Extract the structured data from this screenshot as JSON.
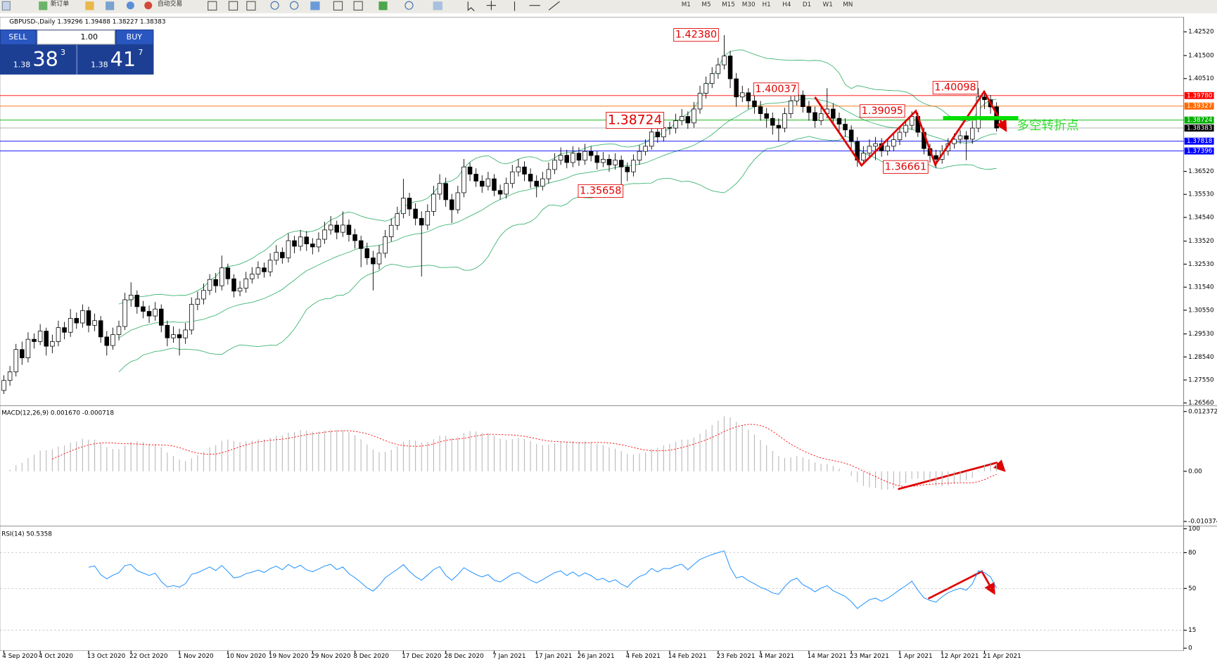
{
  "toolbar": {
    "new_order": "新订单",
    "auto_trading": "自动交易",
    "timeframes": [
      "M1",
      "M5",
      "M15",
      "M30",
      "H1",
      "H4",
      "D1",
      "W1",
      "MN"
    ]
  },
  "trade_panel": {
    "sell": "SELL",
    "lot": "1.00",
    "buy": "BUY",
    "sell_price": [
      "1.38",
      "38",
      "3"
    ],
    "buy_price": [
      "1.38",
      "41",
      "7"
    ]
  },
  "chart_data": {
    "type": "candlestick",
    "title": "GBPUSD-,Daily 1.39296 1.39488 1.38227 1.38383",
    "categories": [
      "4 Sep 2020",
      null,
      null,
      null,
      null,
      null,
      "4 Oct 2020",
      null,
      null,
      null,
      null,
      null,
      null,
      null,
      "13 Oct 2020",
      null,
      null,
      null,
      null,
      null,
      null,
      "22 Oct 2020",
      null,
      null,
      null,
      null,
      null,
      null,
      null,
      "1 Nov 2020",
      null,
      null,
      null,
      null,
      null,
      null,
      null,
      "10 Nov 2020",
      null,
      null,
      null,
      null,
      null,
      null,
      "19 Nov 2020",
      null,
      null,
      null,
      null,
      null,
      null,
      "29 Nov 2020",
      null,
      null,
      null,
      null,
      null,
      null,
      "8 Dec 2020",
      null,
      null,
      null,
      null,
      null,
      null,
      null,
      "17 Dec 2020",
      null,
      null,
      null,
      null,
      null,
      null,
      "28 Dec 2020",
      null,
      null,
      null,
      null,
      null,
      null,
      null,
      "7 Jan 2021",
      null,
      null,
      null,
      null,
      null,
      null,
      "17 Jan 2021",
      null,
      null,
      null,
      null,
      null,
      null,
      "26 Jan 2021",
      null,
      null,
      null,
      null,
      null,
      null,
      null,
      "4 Feb 2021",
      null,
      null,
      null,
      null,
      null,
      null,
      "14 Feb 2021",
      null,
      null,
      null,
      null,
      null,
      null,
      null,
      "23 Feb 2021",
      null,
      null,
      null,
      null,
      null,
      null,
      "4 Mar 2021",
      null,
      null,
      null,
      null,
      null,
      null,
      null,
      "14 Mar 2021",
      null,
      null,
      null,
      null,
      null,
      null,
      "23 Mar 2021",
      null,
      null,
      null,
      null,
      null,
      null,
      null,
      "1 Apr 2021",
      null,
      null,
      null,
      null,
      null,
      null,
      "12 Apr 2021",
      null,
      null,
      null,
      null,
      null,
      null,
      "21 Apr 2021",
      null,
      null
    ],
    "ohlc": [
      [
        1.271,
        1.2775,
        1.2695,
        1.2753
      ],
      [
        1.2753,
        1.2815,
        1.273,
        1.279
      ],
      [
        1.279,
        1.291,
        1.277,
        1.2886
      ],
      [
        1.2886,
        1.292,
        1.282,
        1.285
      ],
      [
        1.285,
        1.296,
        1.283,
        1.293
      ],
      [
        1.293,
        1.2955,
        1.289,
        1.292
      ],
      [
        1.292,
        1.2995,
        1.2905,
        1.2965
      ],
      [
        1.2965,
        1.298,
        1.286,
        1.29
      ],
      [
        1.29,
        1.295,
        1.287,
        1.292
      ],
      [
        1.292,
        1.301,
        1.29,
        1.298
      ],
      [
        1.298,
        1.3005,
        1.293,
        1.296
      ],
      [
        1.296,
        1.306,
        1.294,
        1.302
      ],
      [
        1.302,
        1.3045,
        1.2975,
        1.3
      ],
      [
        1.3,
        1.308,
        1.298,
        1.3053
      ],
      [
        1.3053,
        1.307,
        1.296,
        1.299
      ],
      [
        1.299,
        1.304,
        1.2965,
        1.301
      ],
      [
        1.301,
        1.303,
        1.2915,
        1.294
      ],
      [
        1.294,
        1.2965,
        1.286,
        1.2903
      ],
      [
        1.2903,
        1.298,
        1.2885,
        1.295
      ],
      [
        1.295,
        1.301,
        1.2925,
        1.2985
      ],
      [
        1.2985,
        1.313,
        1.297,
        1.31
      ],
      [
        1.31,
        1.3175,
        1.307,
        1.312
      ],
      [
        1.312,
        1.314,
        1.304,
        1.307
      ],
      [
        1.307,
        1.3095,
        1.302,
        1.305
      ],
      [
        1.305,
        1.3075,
        1.3,
        1.303
      ],
      [
        1.303,
        1.309,
        1.301,
        1.306
      ],
      [
        1.306,
        1.308,
        1.296,
        1.299
      ],
      [
        1.299,
        1.301,
        1.29,
        1.2936
      ],
      [
        1.2936,
        1.2985,
        1.2915,
        1.295
      ],
      [
        1.295,
        1.2975,
        1.286,
        1.2936
      ],
      [
        1.2936,
        1.3,
        1.291,
        1.297
      ],
      [
        1.297,
        1.311,
        1.295,
        1.308
      ],
      [
        1.308,
        1.3135,
        1.3055,
        1.3103
      ],
      [
        1.3103,
        1.317,
        1.308,
        1.314
      ],
      [
        1.314,
        1.321,
        1.312,
        1.3187
      ],
      [
        1.3187,
        1.3215,
        1.313,
        1.316
      ],
      [
        1.316,
        1.329,
        1.314,
        1.3237
      ],
      [
        1.3237,
        1.3255,
        1.3165,
        1.319
      ],
      [
        1.319,
        1.321,
        1.311,
        1.3137
      ],
      [
        1.3137,
        1.318,
        1.3115,
        1.315
      ],
      [
        1.315,
        1.322,
        1.313,
        1.319
      ],
      [
        1.319,
        1.324,
        1.317,
        1.321
      ],
      [
        1.321,
        1.3265,
        1.319,
        1.3237
      ],
      [
        1.3237,
        1.326,
        1.3195,
        1.322
      ],
      [
        1.322,
        1.33,
        1.32,
        1.327
      ],
      [
        1.327,
        1.3335,
        1.325,
        1.3304
      ],
      [
        1.3304,
        1.3325,
        1.3255,
        1.328
      ],
      [
        1.328,
        1.3385,
        1.326,
        1.3354
      ],
      [
        1.3354,
        1.3375,
        1.33,
        1.333
      ],
      [
        1.333,
        1.34,
        1.331,
        1.337
      ],
      [
        1.337,
        1.3395,
        1.331,
        1.334
      ],
      [
        1.334,
        1.3365,
        1.3295,
        1.3327
      ],
      [
        1.3327,
        1.339,
        1.3305,
        1.336
      ],
      [
        1.336,
        1.3435,
        1.334,
        1.34
      ],
      [
        1.34,
        1.346,
        1.338,
        1.3421
      ],
      [
        1.3421,
        1.344,
        1.336,
        1.339
      ],
      [
        1.339,
        1.348,
        1.337,
        1.3421
      ],
      [
        1.3421,
        1.3445,
        1.335,
        1.338
      ],
      [
        1.338,
        1.3405,
        1.332,
        1.3354
      ],
      [
        1.3354,
        1.3375,
        1.324,
        1.332
      ],
      [
        1.332,
        1.3345,
        1.325,
        1.328
      ],
      [
        1.328,
        1.331,
        1.314,
        1.3254
      ],
      [
        1.3254,
        1.3335,
        1.323,
        1.33
      ],
      [
        1.33,
        1.34,
        1.328,
        1.3371
      ],
      [
        1.3371,
        1.345,
        1.335,
        1.342
      ],
      [
        1.342,
        1.35,
        1.34,
        1.347
      ],
      [
        1.347,
        1.362,
        1.345,
        1.3537
      ],
      [
        1.3537,
        1.356,
        1.346,
        1.349
      ],
      [
        1.349,
        1.3515,
        1.342,
        1.345
      ],
      [
        1.345,
        1.348,
        1.32,
        1.3421
      ],
      [
        1.3421,
        1.351,
        1.34,
        1.348
      ],
      [
        1.348,
        1.359,
        1.346,
        1.3554
      ],
      [
        1.3554,
        1.364,
        1.353,
        1.36
      ],
      [
        1.36,
        1.3625,
        1.35,
        1.353
      ],
      [
        1.353,
        1.3555,
        1.343,
        1.3487
      ],
      [
        1.3487,
        1.359,
        1.347,
        1.356
      ],
      [
        1.356,
        1.3705,
        1.354,
        1.3671
      ],
      [
        1.3671,
        1.369,
        1.361,
        1.364
      ],
      [
        1.364,
        1.3665,
        1.3585,
        1.361
      ],
      [
        1.361,
        1.3635,
        1.356,
        1.3588
      ],
      [
        1.3588,
        1.365,
        1.357,
        1.362
      ],
      [
        1.362,
        1.364,
        1.3545,
        1.357
      ],
      [
        1.357,
        1.3595,
        1.353,
        1.3554
      ],
      [
        1.3554,
        1.3625,
        1.3535,
        1.36
      ],
      [
        1.36,
        1.368,
        1.358,
        1.365
      ],
      [
        1.365,
        1.3705,
        1.363,
        1.3671
      ],
      [
        1.3671,
        1.3695,
        1.361,
        1.364
      ],
      [
        1.364,
        1.3665,
        1.358,
        1.361
      ],
      [
        1.361,
        1.3635,
        1.354,
        1.3588
      ],
      [
        1.3588,
        1.365,
        1.357,
        1.362
      ],
      [
        1.362,
        1.369,
        1.36,
        1.366
      ],
      [
        1.366,
        1.373,
        1.364,
        1.37
      ],
      [
        1.37,
        1.3755,
        1.368,
        1.3721
      ],
      [
        1.3721,
        1.3745,
        1.3665,
        1.369
      ],
      [
        1.369,
        1.376,
        1.367,
        1.373
      ],
      [
        1.373,
        1.3755,
        1.3675,
        1.37
      ],
      [
        1.37,
        1.377,
        1.368,
        1.3738
      ],
      [
        1.3738,
        1.376,
        1.3695,
        1.372
      ],
      [
        1.372,
        1.374,
        1.366,
        1.369
      ],
      [
        1.369,
        1.3735,
        1.367,
        1.3704
      ],
      [
        1.3704,
        1.3725,
        1.365,
        1.368
      ],
      [
        1.368,
        1.373,
        1.366,
        1.37
      ],
      [
        1.37,
        1.372,
        1.35658,
        1.3671
      ],
      [
        1.3671,
        1.369,
        1.361,
        1.365
      ],
      [
        1.365,
        1.3725,
        1.363,
        1.37
      ],
      [
        1.37,
        1.3765,
        1.368,
        1.3738
      ],
      [
        1.3738,
        1.379,
        1.372,
        1.376
      ],
      [
        1.376,
        1.385,
        1.3745,
        1.3821
      ],
      [
        1.3821,
        1.384,
        1.3775,
        1.38
      ],
      [
        1.38,
        1.387,
        1.378,
        1.384
      ],
      [
        1.384,
        1.3865,
        1.381,
        1.3838
      ],
      [
        1.3838,
        1.39,
        1.3815,
        1.387
      ],
      [
        1.387,
        1.392,
        1.385,
        1.3888
      ],
      [
        1.3888,
        1.391,
        1.3835,
        1.386
      ],
      [
        1.386,
        1.395,
        1.384,
        1.392
      ],
      [
        1.392,
        1.402,
        1.39,
        1.3988
      ],
      [
        1.3988,
        1.406,
        1.3965,
        1.403
      ],
      [
        1.403,
        1.41,
        1.401,
        1.4072
      ],
      [
        1.4072,
        1.414,
        1.405,
        1.411
      ],
      [
        1.411,
        1.4238,
        1.409,
        1.4148
      ],
      [
        1.4148,
        1.417,
        1.401,
        1.405
      ],
      [
        1.405,
        1.4075,
        1.393,
        1.3972
      ],
      [
        1.3972,
        1.402,
        1.395,
        1.399
      ],
      [
        1.399,
        1.401,
        1.392,
        1.3955
      ],
      [
        1.3955,
        1.3985,
        1.39,
        1.393
      ],
      [
        1.393,
        1.3955,
        1.387,
        1.39
      ],
      [
        1.39,
        1.3925,
        1.384,
        1.388
      ],
      [
        1.388,
        1.3905,
        1.381,
        1.385
      ],
      [
        1.385,
        1.388,
        1.378,
        1.3838
      ],
      [
        1.3838,
        1.3925,
        1.382,
        1.39
      ],
      [
        1.39,
        1.3975,
        1.388,
        1.3955
      ],
      [
        1.3955,
        1.40037,
        1.3935,
        1.398
      ],
      [
        1.398,
        1.4,
        1.3905,
        1.393
      ],
      [
        1.393,
        1.3955,
        1.387,
        1.3905
      ],
      [
        1.3905,
        1.393,
        1.384,
        1.387
      ],
      [
        1.387,
        1.3935,
        1.385,
        1.39
      ],
      [
        1.39,
        1.401,
        1.388,
        1.392
      ],
      [
        1.392,
        1.3945,
        1.385,
        1.388
      ],
      [
        1.388,
        1.3905,
        1.382,
        1.3855
      ],
      [
        1.3855,
        1.388,
        1.38,
        1.383
      ],
      [
        1.383,
        1.385,
        1.375,
        1.378
      ],
      [
        1.378,
        1.38,
        1.3672,
        1.37
      ],
      [
        1.37,
        1.376,
        1.368,
        1.373
      ],
      [
        1.373,
        1.379,
        1.371,
        1.376
      ],
      [
        1.376,
        1.38,
        1.37,
        1.3771
      ],
      [
        1.3771,
        1.3795,
        1.3715,
        1.374
      ],
      [
        1.374,
        1.3785,
        1.372,
        1.376
      ],
      [
        1.376,
        1.3815,
        1.374,
        1.3788
      ],
      [
        1.3788,
        1.3845,
        1.3765,
        1.382
      ],
      [
        1.382,
        1.3875,
        1.38,
        1.385
      ],
      [
        1.385,
        1.39095,
        1.383,
        1.3888
      ],
      [
        1.3888,
        1.3905,
        1.38,
        1.382
      ],
      [
        1.382,
        1.384,
        1.3725,
        1.375
      ],
      [
        1.375,
        1.377,
        1.369,
        1.372
      ],
      [
        1.372,
        1.3745,
        1.36661,
        1.3704
      ],
      [
        1.3704,
        1.3765,
        1.3685,
        1.374
      ],
      [
        1.374,
        1.3795,
        1.372,
        1.3771
      ],
      [
        1.3771,
        1.3815,
        1.375,
        1.379
      ],
      [
        1.379,
        1.383,
        1.377,
        1.3805
      ],
      [
        1.3805,
        1.3825,
        1.37,
        1.379
      ],
      [
        1.379,
        1.387,
        1.377,
        1.3838
      ],
      [
        1.3838,
        1.40098,
        1.382,
        1.3972
      ],
      [
        1.3972,
        1.3995,
        1.392,
        1.396
      ],
      [
        1.396,
        1.398,
        1.39,
        1.3929
      ],
      [
        1.39296,
        1.39488,
        1.38227,
        1.38383
      ]
    ],
    "ylim": [
      1.26493,
      1.43154
    ],
    "yticks": [
      {
        "value": 1.4252,
        "label": "1.42520"
      },
      {
        "value": 1.415,
        "label": "1.41500"
      },
      {
        "value": 1.4051,
        "label": "1.40510"
      },
      {
        "value": 1.3652,
        "label": "1.36520"
      },
      {
        "value": 1.3553,
        "label": "1.35530"
      },
      {
        "value": 1.3454,
        "label": "1.34540"
      },
      {
        "value": 1.3352,
        "label": "1.33520"
      },
      {
        "value": 1.3253,
        "label": "1.32530"
      },
      {
        "value": 1.3154,
        "label": "1.31540"
      },
      {
        "value": 1.3055,
        "label": "1.30550"
      },
      {
        "value": 1.2953,
        "label": "1.29530"
      },
      {
        "value": 1.2854,
        "label": "1.28540"
      },
      {
        "value": 1.2755,
        "label": "1.27550"
      },
      {
        "value": 1.2656,
        "label": "1.26560"
      }
    ],
    "levels": [
      {
        "value": 1.3978,
        "label": "1.39780",
        "color": "#ff0000"
      },
      {
        "value": 1.39327,
        "label": "1.39327",
        "color": "#ff6a00"
      },
      {
        "value": 1.38724,
        "label": "1.38724",
        "color": "#00b000"
      },
      {
        "value": 1.38383,
        "label": "1.38383",
        "color": "#000000"
      },
      {
        "value": 1.37818,
        "label": "1.37818",
        "color": "#0000ff"
      },
      {
        "value": 1.37396,
        "label": "1.37396",
        "color": "#0000ff"
      }
    ],
    "annotations": [
      "1.42380",
      "1.40037",
      "1.38724",
      "1.39095",
      "1.35658",
      "1.36661",
      "1.40098"
    ],
    "note": "多空转折点",
    "band_color": "#3cb371",
    "macd": {
      "title": "MACD(12,26,9) 0.001670 -0.000718",
      "hist_color": "#b8b8b8",
      "signal_color": "#ff0000",
      "ylim": [
        -0.01109,
        0.01333
      ],
      "yticks": [
        0.012372,
        {
          "value": 0,
          "label": "0.00"
        },
        -0.010374
      ]
    },
    "rsi": {
      "title": "RSI(14) 50.5358",
      "color": "#1e90ff",
      "ylim": [
        -2.1,
        101.3
      ],
      "yticks": [
        100,
        80,
        50,
        15,
        0
      ]
    }
  }
}
